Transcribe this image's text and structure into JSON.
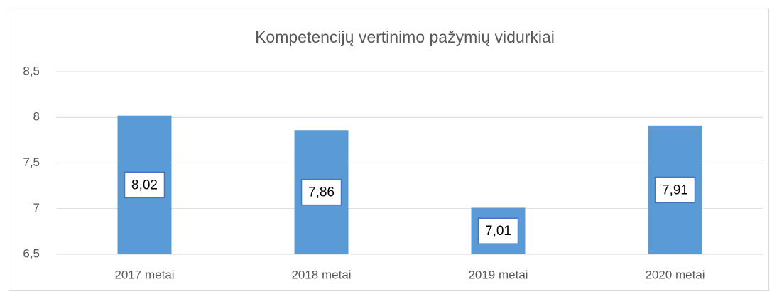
{
  "chart_data": {
    "type": "bar",
    "title": "Kompetencijų vertinimo pažymių vidurkiai",
    "categories": [
      "2017 metai",
      "2018 metai",
      "2019 metai",
      "2020 metai"
    ],
    "values": [
      8.02,
      7.86,
      7.01,
      7.91
    ],
    "value_labels": [
      "8,02",
      "7,86",
      "7,01",
      "7,91"
    ],
    "color": "#5b9bd5",
    "ylim": [
      6.5,
      8.5
    ],
    "yticks": [
      {
        "value": 6.5,
        "label": "6,5"
      },
      7,
      {
        "value": 7.5,
        "label": "7,5"
      },
      8,
      {
        "value": 8.5,
        "label": "8,5"
      }
    ],
    "grid": true
  }
}
